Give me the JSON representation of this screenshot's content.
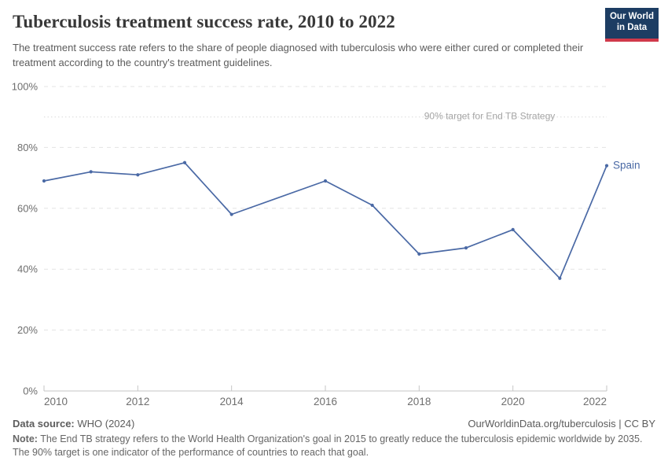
{
  "header": {
    "title": "Tuberculosis treatment success rate, 2010 to 2022",
    "subtitle": "The treatment success rate refers to the share of people diagnosed with tuberculosis who were either cured or completed their treatment according to the country's treatment guidelines.",
    "logo": {
      "line1": "Our World",
      "line2": "in Data"
    }
  },
  "colors": {
    "series_blue": "#4a69a5",
    "logo_navy": "#1d3d63",
    "logo_red": "#d0394a",
    "grid": "#e3e3e3",
    "axis": "#c6c6c6",
    "axis_label": "#6e6e6e",
    "target_line": "#d9d9d9",
    "target_text": "#a5a5a5",
    "title_text": "#383838"
  },
  "chart_data": {
    "type": "line",
    "title": "Tuberculosis treatment success rate, 2010 to 2022",
    "series": [
      {
        "name": "Spain",
        "color": "#4a69a5",
        "x": [
          2010,
          2011,
          2012,
          2013,
          2014,
          2016,
          2017,
          2018,
          2019,
          2020,
          2021,
          2022
        ],
        "values": [
          69,
          72,
          71,
          75,
          58,
          69,
          61,
          45,
          47,
          53,
          37,
          74
        ]
      }
    ],
    "xlim": [
      2010,
      2022
    ],
    "ylim": [
      0,
      100
    ],
    "x_ticks": [
      2010,
      2012,
      2014,
      2016,
      2018,
      2020,
      2022
    ],
    "y_ticks": [
      0,
      20,
      40,
      60,
      80,
      100
    ],
    "y_tick_suffix": "%",
    "grid": "horizontal-dashed",
    "legend_position": "end-of-line-label",
    "annotation": {
      "value": 90,
      "label": "90% target for End TB Strategy"
    }
  },
  "footer": {
    "source_label": "Data source:",
    "source_value": " WHO (2024)",
    "link": "OurWorldinData.org/tuberculosis | CC BY",
    "note_label": "Note:",
    "note_value": " The End TB strategy refers to the World Health Organization's goal in 2015 to greatly reduce the tuberculosis epidemic worldwide by 2035. The 90% target is one indicator of the performance of countries to reach that goal."
  }
}
